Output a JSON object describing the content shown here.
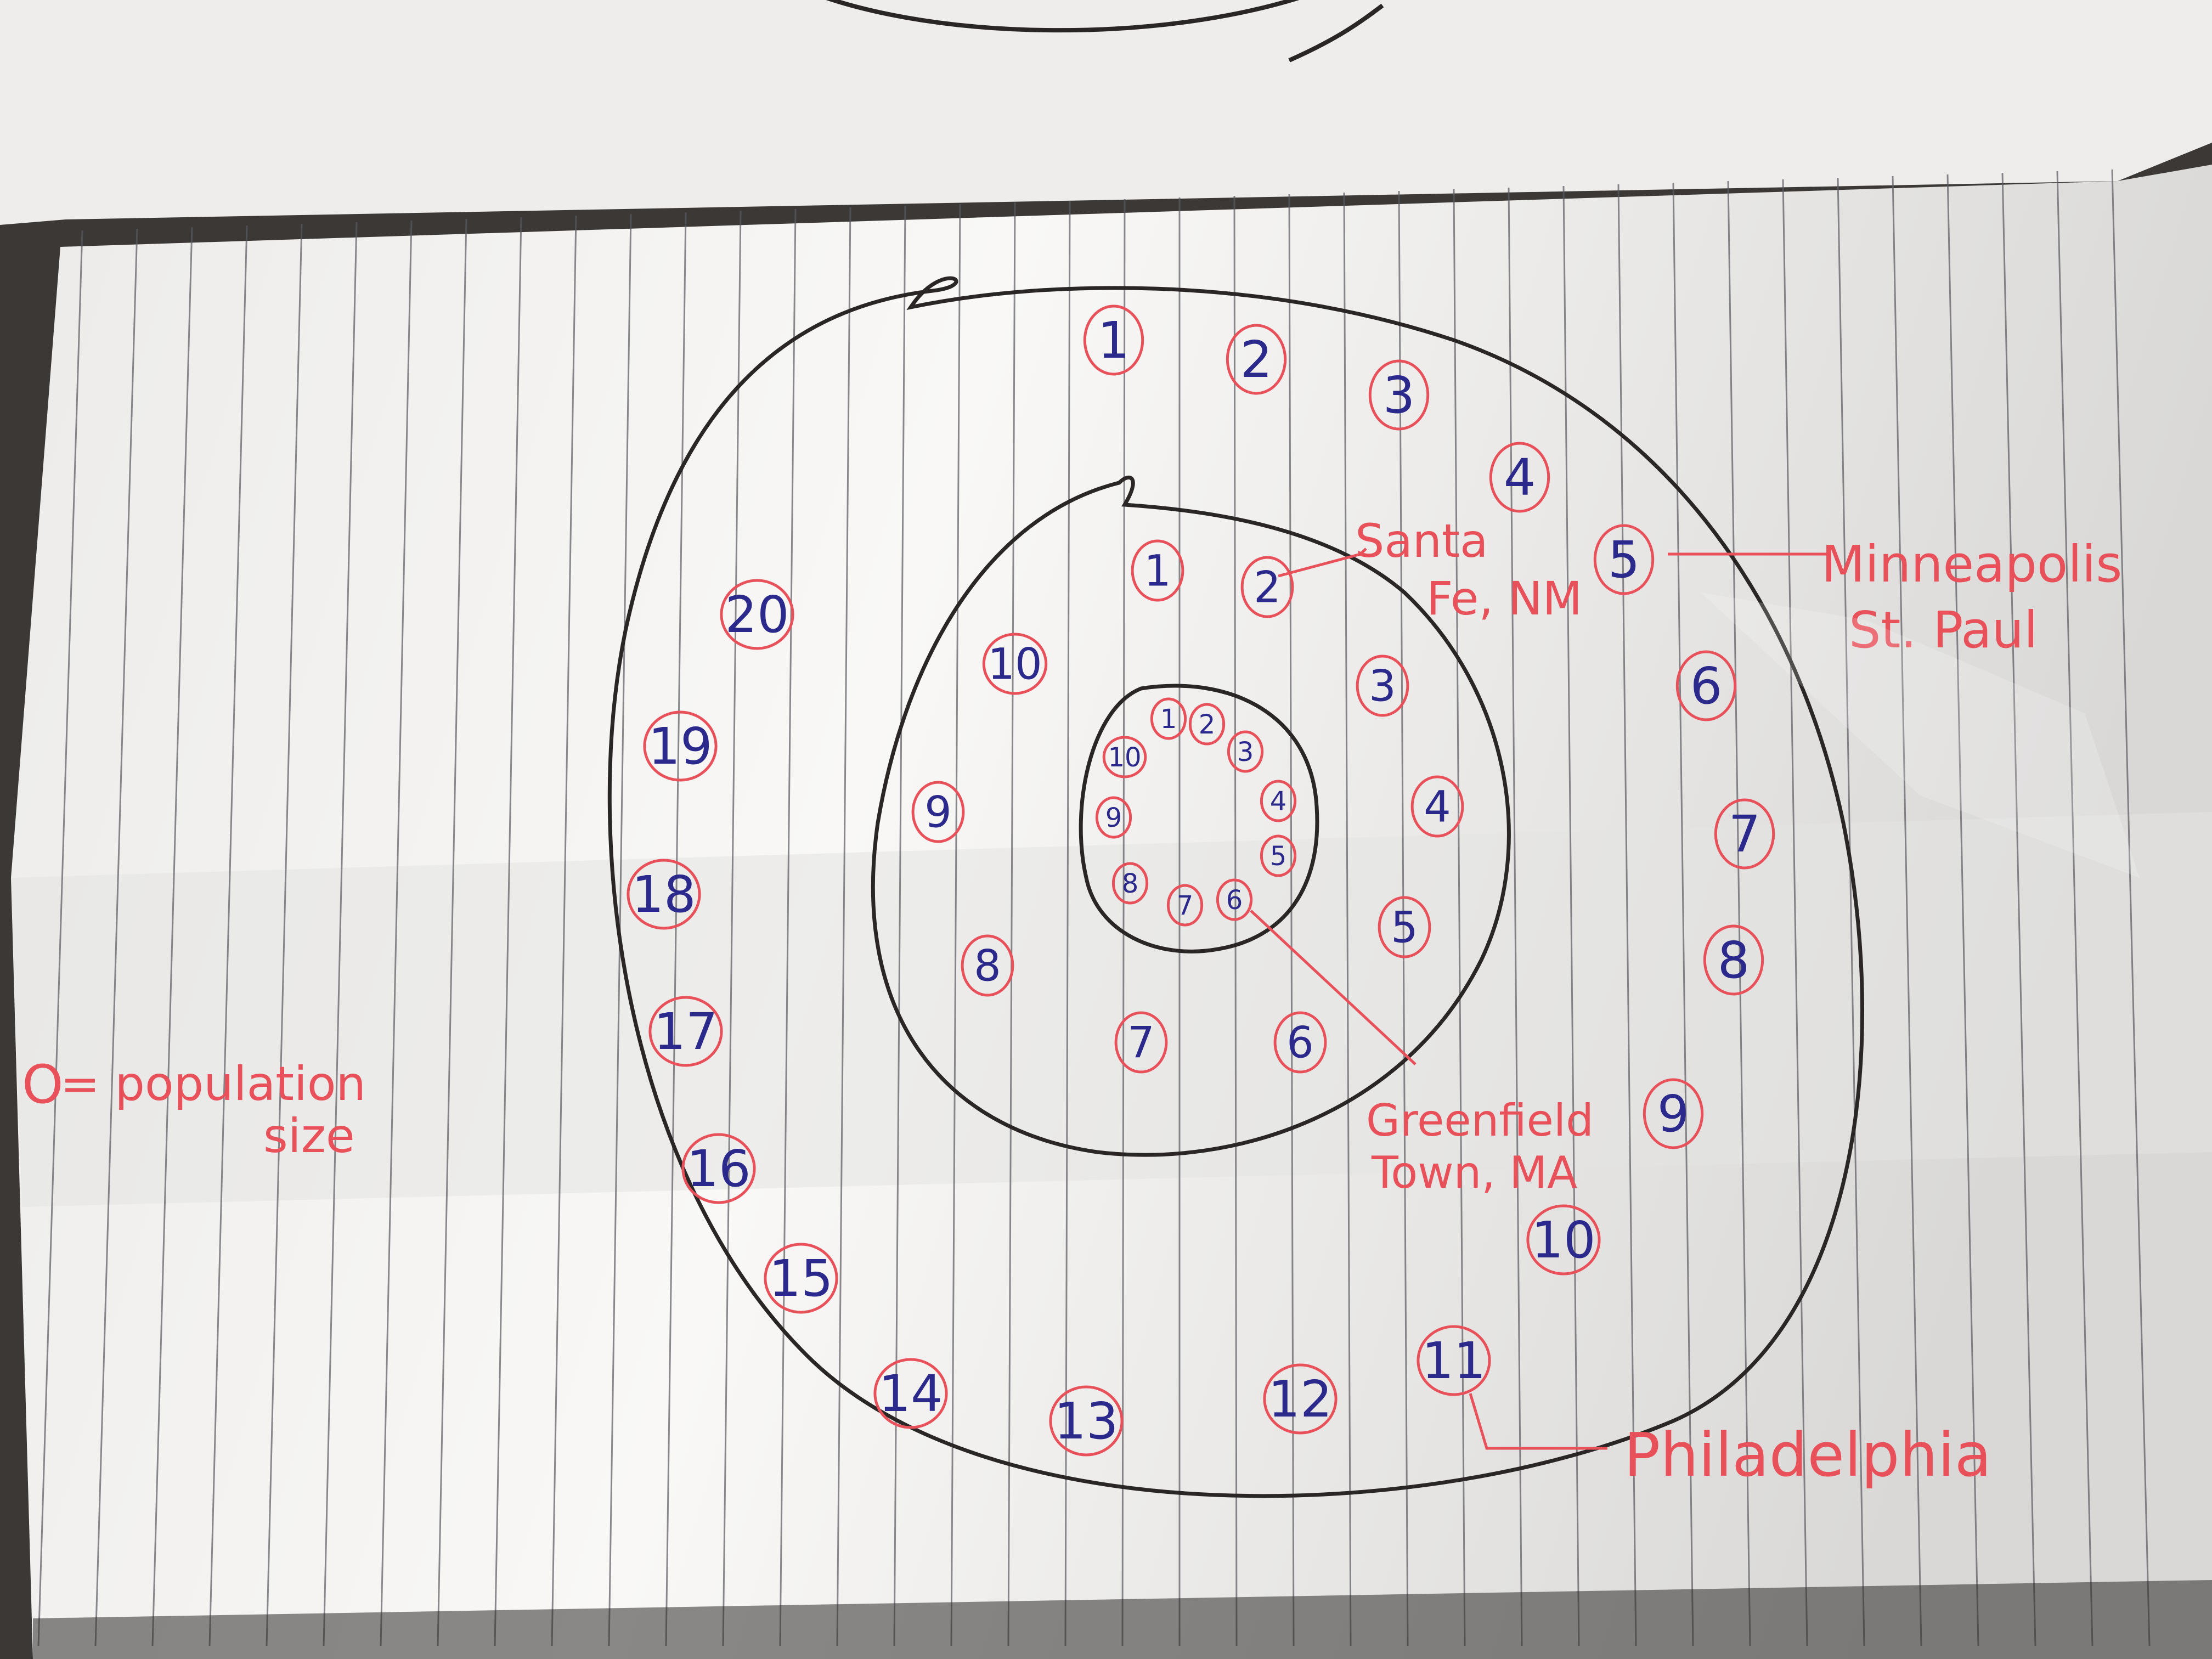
{
  "legend": {
    "symbol": "O",
    "text_line1": "= population",
    "text_line2": "size"
  },
  "rings": {
    "outer": [
      "1",
      "2",
      "3",
      "4",
      "5",
      "6",
      "7",
      "8",
      "9",
      "10",
      "11",
      "12",
      "13",
      "14",
      "15",
      "16",
      "17",
      "18",
      "19",
      "20"
    ],
    "middle": [
      "1",
      "2",
      "3",
      "4",
      "5",
      "6",
      "7",
      "8",
      "9",
      "10"
    ],
    "inner": [
      "1",
      "2",
      "3",
      "4",
      "5",
      "6",
      "7",
      "8",
      "9",
      "10"
    ]
  },
  "annotations": {
    "santa_fe_line1": "Santa",
    "santa_fe_line2": "Fe, NM",
    "minneapolis_line1": "Minneapolis",
    "minneapolis_line2": "St. Paul",
    "greenfield_line1": "Greenfield",
    "greenfield_line2": "Town, MA",
    "philadelphia": "Philadelphia"
  },
  "colors": {
    "ink_blue": "#2b2a8c",
    "ink_red": "#e8505a",
    "ink_black": "#2a2626",
    "paper": "#f7f6f4",
    "paper_shadow": "#e7e6e4",
    "rule_line": "#5a5a60",
    "table": "#3b3836"
  }
}
